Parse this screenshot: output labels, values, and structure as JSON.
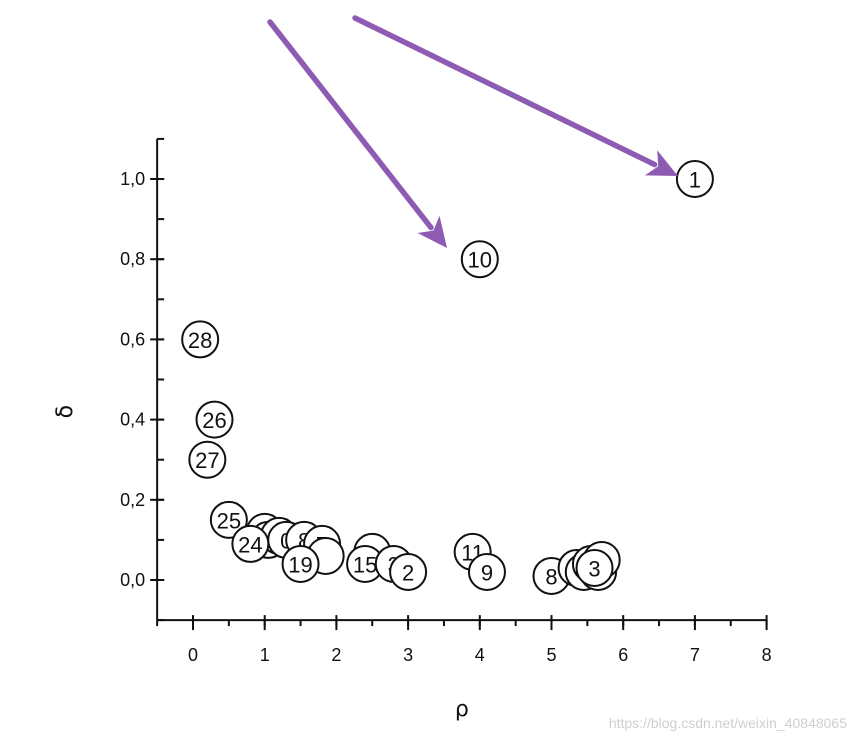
{
  "chart_data": {
    "type": "scatter",
    "xlabel": "ρ",
    "ylabel": "δ",
    "xlim": [
      -0.5,
      8
    ],
    "ylim": [
      -0.1,
      1.1
    ],
    "x_ticks": [
      0,
      1,
      2,
      3,
      4,
      5,
      6,
      7,
      8
    ],
    "x_tick_labels": [
      "0",
      "1",
      "2",
      "3",
      "4",
      "5",
      "6",
      "7",
      "8"
    ],
    "y_ticks": [
      0.0,
      0.2,
      0.4,
      0.6,
      0.8,
      1.0
    ],
    "y_tick_labels": [
      "0,0",
      "0,2",
      "0,4",
      "0,6",
      "0,8",
      "1,0"
    ],
    "grid": false,
    "points": [
      {
        "label": "1",
        "x": 7.0,
        "y": 1.0
      },
      {
        "label": "10",
        "x": 4.0,
        "y": 0.8
      },
      {
        "label": "28",
        "x": 0.1,
        "y": 0.6
      },
      {
        "label": "26",
        "x": 0.3,
        "y": 0.4
      },
      {
        "label": "27",
        "x": 0.2,
        "y": 0.3
      },
      {
        "label": "25",
        "x": 0.5,
        "y": 0.15
      },
      {
        "label": "",
        "x": 1.0,
        "y": 0.12
      },
      {
        "label": "",
        "x": 1.05,
        "y": 0.1
      },
      {
        "label": "",
        "x": 1.2,
        "y": 0.11
      },
      {
        "label": "0",
        "x": 1.3,
        "y": 0.1
      },
      {
        "label": "8",
        "x": 1.55,
        "y": 0.1
      },
      {
        "label": "7",
        "x": 1.8,
        "y": 0.09
      },
      {
        "label": "",
        "x": 1.85,
        "y": 0.06
      },
      {
        "label": "24",
        "x": 0.8,
        "y": 0.09
      },
      {
        "label": "19",
        "x": 1.5,
        "y": 0.04
      },
      {
        "label": "",
        "x": 2.5,
        "y": 0.07
      },
      {
        "label": "15",
        "x": 2.4,
        "y": 0.04
      },
      {
        "label": "3",
        "x": 2.8,
        "y": 0.04
      },
      {
        "label": "2",
        "x": 3.0,
        "y": 0.02
      },
      {
        "label": "11",
        "x": 3.9,
        "y": 0.07
      },
      {
        "label": "9",
        "x": 4.1,
        "y": 0.02
      },
      {
        "label": "8",
        "x": 5.0,
        "y": 0.01
      },
      {
        "label": "7",
        "x": 5.35,
        "y": 0.03
      },
      {
        "label": "",
        "x": 5.45,
        "y": 0.02
      },
      {
        "label": "",
        "x": 5.55,
        "y": 0.04
      },
      {
        "label": "",
        "x": 5.65,
        "y": 0.02
      },
      {
        "label": "",
        "x": 5.7,
        "y": 0.05
      },
      {
        "label": "3",
        "x": 5.6,
        "y": 0.03
      }
    ],
    "annotations": [
      {
        "type": "arrow",
        "color": "#8e5bb3",
        "target_label": "10"
      },
      {
        "type": "arrow",
        "color": "#8e5bb3",
        "target_label": "1"
      }
    ]
  },
  "watermark": "https://blog.csdn.net/weixin_40848065"
}
